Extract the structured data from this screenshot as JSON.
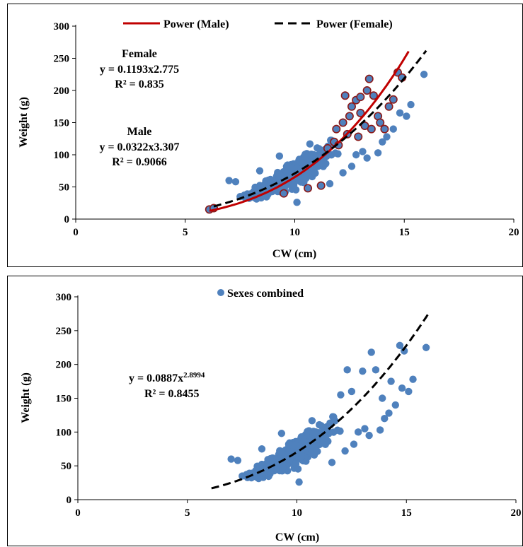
{
  "colors": {
    "point": "#4f81bd",
    "male_outline": "#8b1a1a",
    "male_curve": "#c00000",
    "female_curve": "#000000"
  },
  "chart_data": [
    {
      "type": "scatter",
      "xlabel": "CW (cm)",
      "ylabel": "Weight (g)",
      "xlim": [
        0,
        20
      ],
      "ylim": [
        0,
        300
      ],
      "x_ticks": [
        "0",
        "5",
        "10",
        "15",
        "20"
      ],
      "y_ticks": [
        "0",
        "50",
        "100",
        "150",
        "200",
        "250",
        "300"
      ],
      "legend": {
        "position": "top",
        "items": [
          "Power (Male)",
          "Power (Female)"
        ]
      },
      "annotations": {
        "female_title": "Female",
        "female_eq": "y = 0.1193x2.775",
        "female_r2": "R² = 0.835",
        "male_title": "Male",
        "male_eq": "y = 0.0322x3.307",
        "male_r2": "R² = 0.9066"
      },
      "series": [
        {
          "name": "Power (Male)",
          "kind": "power",
          "a": 0.0322,
          "b": 3.307,
          "x_range": [
            6.1,
            15.2
          ],
          "style": "solid"
        },
        {
          "name": "Power (Female)",
          "kind": "power",
          "a": 0.1193,
          "b": 2.775,
          "x_range": [
            6.3,
            16.0
          ],
          "style": "dashed"
        }
      ],
      "outlined_points": [
        [
          6.1,
          15
        ],
        [
          6.3,
          17
        ],
        [
          9.5,
          40
        ],
        [
          10.6,
          48
        ],
        [
          11.2,
          52
        ],
        [
          11.8,
          120
        ],
        [
          12.0,
          115
        ],
        [
          11.9,
          140
        ],
        [
          12.2,
          150
        ],
        [
          12.5,
          160
        ],
        [
          12.3,
          192
        ],
        [
          12.6,
          175
        ],
        [
          12.8,
          185
        ],
        [
          13.0,
          165
        ],
        [
          13.2,
          145
        ],
        [
          13.0,
          190
        ],
        [
          13.3,
          200
        ],
        [
          13.4,
          218
        ],
        [
          13.6,
          192
        ],
        [
          13.8,
          160
        ],
        [
          13.9,
          150
        ],
        [
          14.1,
          140
        ],
        [
          14.3,
          175
        ],
        [
          14.5,
          186
        ],
        [
          14.7,
          228
        ],
        [
          14.9,
          220
        ],
        [
          12.4,
          132
        ],
        [
          12.9,
          128
        ],
        [
          13.5,
          140
        ],
        [
          11.5,
          110
        ]
      ],
      "outlier_points": [
        [
          7.0,
          60
        ],
        [
          7.3,
          58
        ],
        [
          8.4,
          75
        ],
        [
          9.3,
          98
        ],
        [
          10.1,
          26
        ],
        [
          11.3,
          92
        ],
        [
          12.6,
          82
        ],
        [
          13.1,
          105
        ],
        [
          13.3,
          95
        ],
        [
          13.8,
          103
        ],
        [
          14.2,
          128
        ],
        [
          14.5,
          140
        ],
        [
          14.8,
          165
        ],
        [
          15.3,
          178
        ],
        [
          15.9,
          225
        ],
        [
          15.1,
          160
        ],
        [
          14.0,
          120
        ],
        [
          12.8,
          100
        ],
        [
          12.2,
          72
        ],
        [
          11.6,
          55
        ]
      ]
    },
    {
      "type": "scatter",
      "xlabel": "CW (cm)",
      "ylabel": "Weight (g)",
      "xlim": [
        0,
        20
      ],
      "ylim": [
        0,
        300
      ],
      "x_ticks": [
        "0",
        "5",
        "10",
        "15",
        "20"
      ],
      "y_ticks": [
        "0",
        "50",
        "100",
        "150",
        "200",
        "250",
        "300"
      ],
      "legend": {
        "position": "top",
        "items": [
          "Sexes combined"
        ]
      },
      "annotations": {
        "eq_main": "y = 0.0887x",
        "eq_exp": "2.8994",
        "r2": "R² = 0.8455"
      },
      "series": [
        {
          "name": "Sexes combined",
          "kind": "scatter"
        },
        {
          "name": "",
          "kind": "power",
          "a": 0.0887,
          "b": 2.8994,
          "x_range": [
            6.1,
            16.0
          ],
          "style": "dashed"
        }
      ],
      "outlier_points": [
        [
          7.0,
          60
        ],
        [
          7.3,
          58
        ],
        [
          8.4,
          75
        ],
        [
          9.3,
          98
        ],
        [
          10.1,
          26
        ],
        [
          11.3,
          92
        ],
        [
          12.6,
          82
        ],
        [
          13.1,
          105
        ],
        [
          13.3,
          95
        ],
        [
          13.8,
          103
        ],
        [
          14.2,
          128
        ],
        [
          14.5,
          140
        ],
        [
          14.8,
          165
        ],
        [
          15.3,
          178
        ],
        [
          15.9,
          225
        ],
        [
          15.1,
          160
        ],
        [
          14.0,
          120
        ],
        [
          12.8,
          100
        ],
        [
          12.2,
          72
        ],
        [
          11.6,
          55
        ],
        [
          12.3,
          192
        ],
        [
          13.4,
          218
        ],
        [
          14.7,
          228
        ],
        [
          13.0,
          190
        ],
        [
          12.5,
          160
        ],
        [
          13.6,
          192
        ],
        [
          13.9,
          150
        ],
        [
          14.3,
          175
        ],
        [
          14.9,
          220
        ],
        [
          12.0,
          155
        ]
      ]
    }
  ]
}
